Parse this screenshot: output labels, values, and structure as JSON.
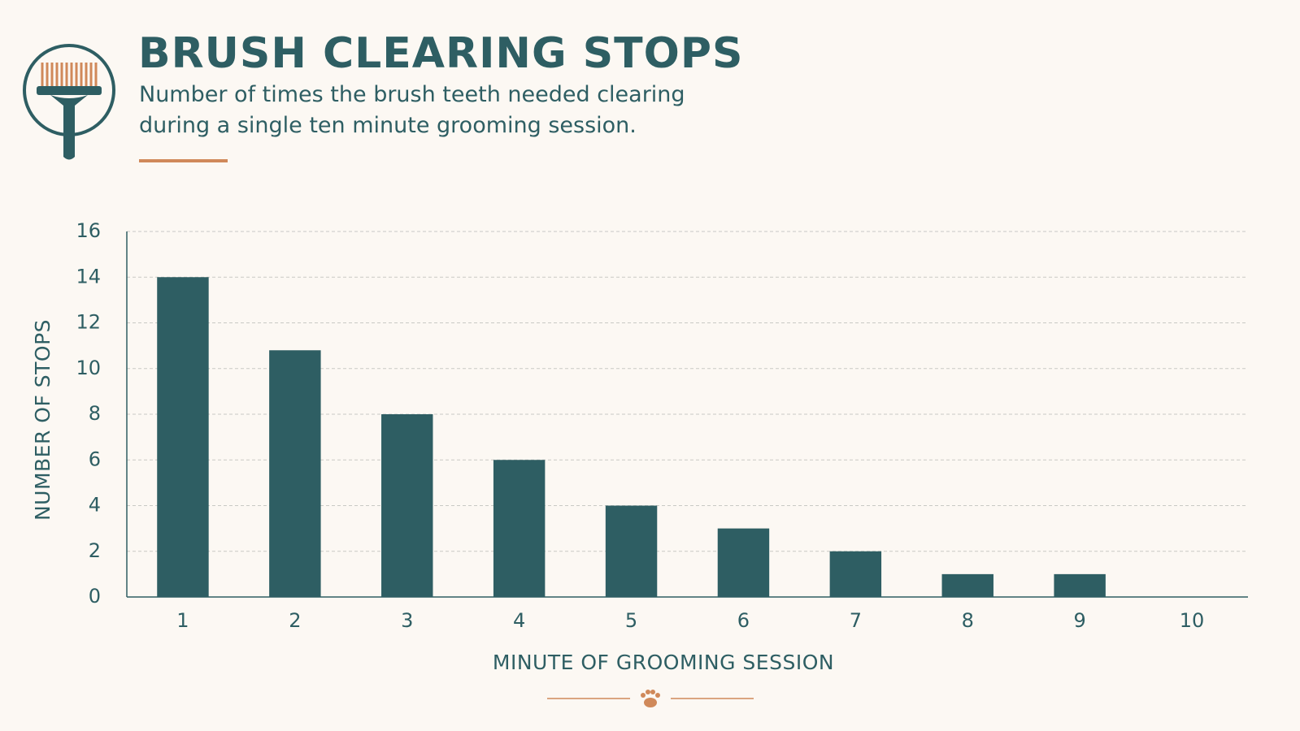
{
  "chart_data": {
    "type": "bar",
    "title": "BRUSH CLEARING STOPS",
    "subtitle": "Number of times the brush teeth needed clearing during a single ten minute grooming session.",
    "x_label": "MINUTE OF GROOMING SESSION",
    "y_label": "NUMBER OF STOPS",
    "categories": [
      "1",
      "2",
      "3",
      "4",
      "5",
      "6",
      "7",
      "8",
      "9",
      "10"
    ],
    "values": [
      14,
      10.8,
      8,
      6,
      4,
      3,
      2,
      1,
      1,
      0
    ],
    "color": "#2e5e63",
    "ylim": [
      0,
      16
    ],
    "yticks": [
      0,
      2,
      4,
      6,
      8,
      10,
      12,
      14,
      16
    ],
    "grid": true
  }
}
